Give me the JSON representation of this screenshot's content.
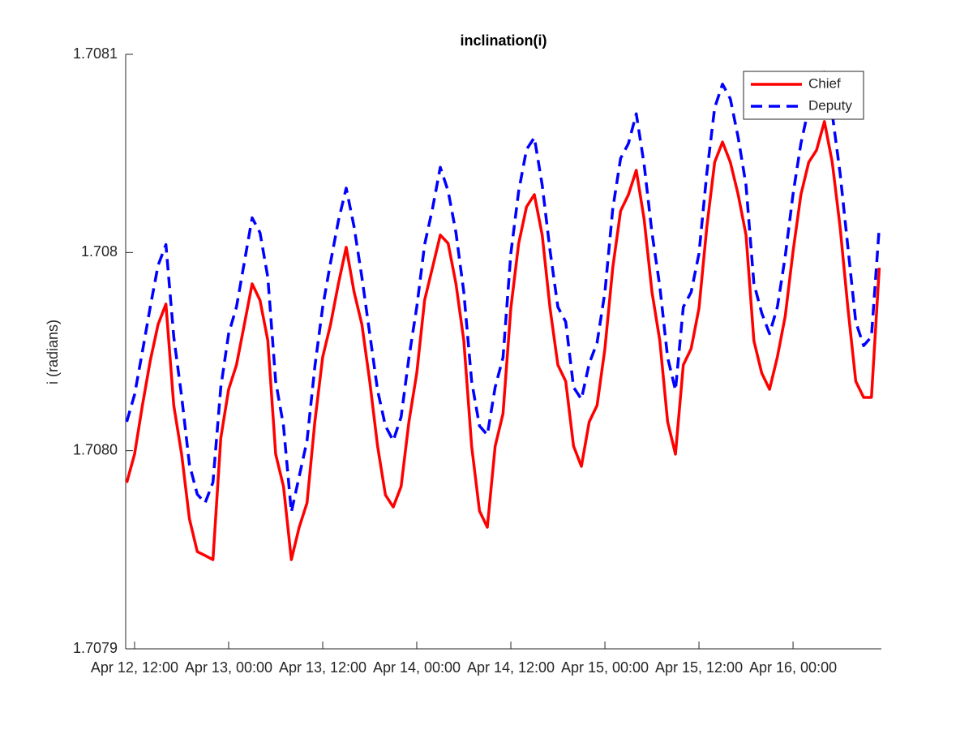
{
  "chart_data": {
    "type": "line",
    "title": "inclination(i)",
    "y_label": "i (radians)",
    "x": [
      "Apr 12, 11:00",
      "Apr 12, 12:00",
      "Apr 12, 13:00",
      "Apr 12, 14:00",
      "Apr 12, 15:00",
      "Apr 12, 16:00",
      "Apr 12, 17:00",
      "Apr 12, 18:00",
      "Apr 12, 19:00",
      "Apr 12, 20:00",
      "Apr 12, 21:00",
      "Apr 12, 22:00",
      "Apr 12, 23:00",
      "Apr 13, 00:00",
      "Apr 13, 01:00",
      "Apr 13, 02:00",
      "Apr 13, 03:00",
      "Apr 13, 04:00",
      "Apr 13, 05:00",
      "Apr 13, 06:00",
      "Apr 13, 07:00",
      "Apr 13, 08:00",
      "Apr 13, 09:00",
      "Apr 13, 10:00",
      "Apr 13, 11:00",
      "Apr 13, 12:00",
      "Apr 13, 13:00",
      "Apr 13, 14:00",
      "Apr 13, 15:00",
      "Apr 13, 16:00",
      "Apr 13, 17:00",
      "Apr 13, 18:00",
      "Apr 13, 19:00",
      "Apr 13, 20:00",
      "Apr 13, 21:00",
      "Apr 13, 22:00",
      "Apr 13, 23:00",
      "Apr 14, 00:00",
      "Apr 14, 01:00",
      "Apr 14, 02:00",
      "Apr 14, 03:00",
      "Apr 14, 04:00",
      "Apr 14, 05:00",
      "Apr 14, 06:00",
      "Apr 14, 07:00",
      "Apr 14, 08:00",
      "Apr 14, 09:00",
      "Apr 14, 10:00",
      "Apr 14, 11:00",
      "Apr 14, 12:00",
      "Apr 14, 13:00",
      "Apr 14, 14:00",
      "Apr 14, 15:00",
      "Apr 14, 16:00",
      "Apr 14, 17:00",
      "Apr 14, 18:00",
      "Apr 14, 19:00",
      "Apr 14, 20:00",
      "Apr 14, 21:00",
      "Apr 14, 22:00",
      "Apr 14, 23:00",
      "Apr 15, 00:00",
      "Apr 15, 01:00",
      "Apr 15, 02:00",
      "Apr 15, 03:00",
      "Apr 15, 04:00",
      "Apr 15, 05:00",
      "Apr 15, 06:00",
      "Apr 15, 07:00",
      "Apr 15, 08:00",
      "Apr 15, 09:00",
      "Apr 15, 10:00",
      "Apr 15, 11:00",
      "Apr 15, 12:00",
      "Apr 15, 13:00",
      "Apr 15, 14:00",
      "Apr 15, 15:00",
      "Apr 15, 16:00",
      "Apr 15, 17:00",
      "Apr 15, 18:00",
      "Apr 15, 19:00",
      "Apr 15, 20:00",
      "Apr 15, 21:00",
      "Apr 15, 22:00",
      "Apr 15, 23:00",
      "Apr 16, 00:00",
      "Apr 16, 01:00",
      "Apr 16, 02:00",
      "Apr 16, 03:00",
      "Apr 16, 04:00",
      "Apr 16, 05:00",
      "Apr 16, 06:00",
      "Apr 16, 07:00",
      "Apr 16, 08:00",
      "Apr 16, 09:00",
      "Apr 16, 10:00",
      "Apr 16, 11:00"
    ],
    "series": [
      {
        "name": "Chief",
        "color": "#ff0000",
        "linestyle": "solid",
        "values": [
          1.7079559,
          1.7079655,
          1.7079819,
          1.7079969,
          1.7080091,
          1.708016,
          1.7079819,
          1.7079655,
          1.7079437,
          1.7079327,
          1.7079314,
          1.70793,
          1.7079709,
          1.7079873,
          1.7079955,
          1.7080091,
          1.7080228,
          1.7080173,
          1.7080037,
          1.7079655,
          1.7079546,
          1.70793,
          1.7079409,
          1.7079491,
          1.7079764,
          1.7079982,
          1.7080091,
          1.7080228,
          1.7080351,
          1.7080201,
          1.7080091,
          1.70799,
          1.7079682,
          1.7079518,
          1.7079477,
          1.7079546,
          1.7079764,
          1.7079928,
          1.7080173,
          1.7080282,
          1.7080392,
          1.7080364,
          1.7080228,
          1.7080037,
          1.7079682,
          1.7079464,
          1.7079409,
          1.7079682,
          1.7079791,
          1.7080146,
          1.7080364,
          1.7080487,
          1.7080528,
          1.7080392,
          1.7080146,
          1.7079955,
          1.70799,
          1.7079682,
          1.7079614,
          1.7079764,
          1.7079819,
          1.708001,
          1.7080282,
          1.7080473,
          1.7080528,
          1.708061,
          1.7080446,
          1.7080201,
          1.7080037,
          1.7079764,
          1.7079655,
          1.7079955,
          1.708001,
          1.7080146,
          1.7080419,
          1.7080637,
          1.7080705,
          1.7080637,
          1.7080528,
          1.7080392,
          1.7080037,
          1.7079928,
          1.7079873,
          1.7079982,
          1.7080119,
          1.7080337,
          1.7080528,
          1.7080637,
          1.7080678,
          1.7080774,
          1.7080637,
          1.7080419,
          1.7080146,
          1.70799,
          1.7079846,
          1.7079846,
          1.7080282
        ]
      },
      {
        "name": "Deputy",
        "color": "#0000ff",
        "linestyle": "dashed",
        "values": [
          1.7079764,
          1.7079855,
          1.708,
          1.708015,
          1.708029,
          1.708036,
          1.708005,
          1.707985,
          1.707962,
          1.707952,
          1.7079491,
          1.707956,
          1.707988,
          1.708006,
          1.708015,
          1.70803,
          1.708045,
          1.70804,
          1.708025,
          1.70799,
          1.707975,
          1.707946,
          1.707958,
          1.70797,
          1.707995,
          1.708015,
          1.70803,
          1.708044,
          1.708055,
          1.708042,
          1.708025,
          1.708006,
          1.707987,
          1.707975,
          1.70797,
          1.707978,
          1.707998,
          1.708015,
          1.708036,
          1.708048,
          1.708062,
          1.708054,
          1.70804,
          1.70802,
          1.70799,
          1.707975,
          1.707972,
          1.707988,
          1.707998,
          1.708033,
          1.708054,
          1.708068,
          1.708072,
          1.708056,
          1.708034,
          1.708015,
          1.70801,
          1.707988,
          1.707984,
          1.707996,
          1.708003,
          1.70802,
          1.708048,
          1.708065,
          1.70807,
          1.70808,
          1.708063,
          1.70804,
          1.708022,
          1.707998,
          1.707987,
          1.708015,
          1.70802,
          1.708033,
          1.70806,
          1.708082,
          1.70809,
          1.708085,
          1.708072,
          1.708056,
          1.708023,
          1.708013,
          1.708006,
          1.708015,
          1.708032,
          1.708053,
          1.70807,
          1.708082,
          1.708087,
          1.708094,
          1.70808,
          1.70806,
          1.708035,
          1.70801,
          1.708002,
          1.708005,
          1.708042
        ]
      }
    ],
    "xlim": [
      "Apr 12, 10:52",
      "Apr 16, 11:16"
    ],
    "xticks": [
      "Apr 12, 12:00",
      "Apr 13, 00:00",
      "Apr 13, 12:00",
      "Apr 14, 00:00",
      "Apr 14, 12:00",
      "Apr 15, 00:00",
      "Apr 15, 12:00",
      "Apr 16, 00:00"
    ],
    "ylim": [
      1.7079,
      1.7081
    ],
    "yticks": [
      1.7079,
      {
        "value": 1.70796667,
        "label": "1.7080"
      },
      {
        "value": 1.70803333,
        "label": "1.708"
      },
      1.7081
    ],
    "legend": "upper right"
  }
}
